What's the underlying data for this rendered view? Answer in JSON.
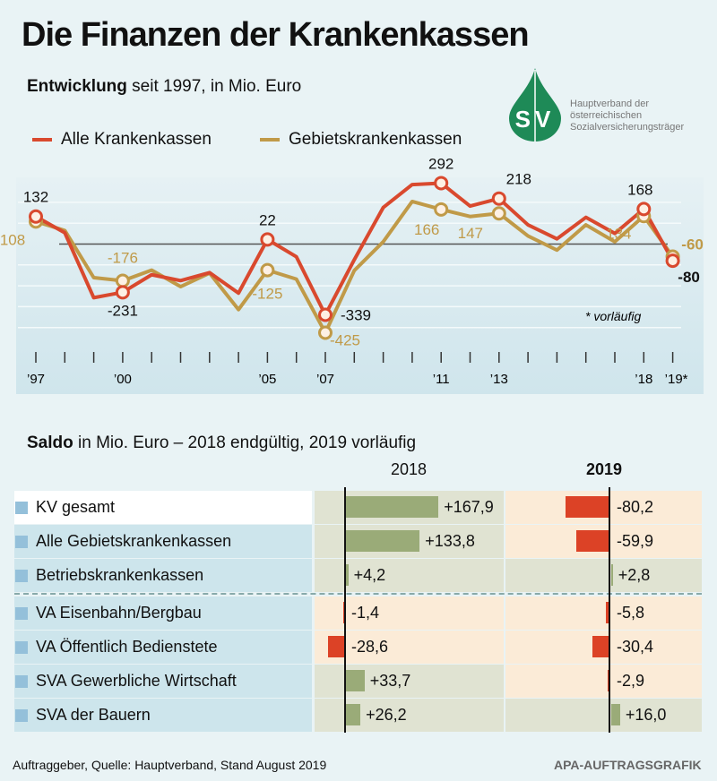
{
  "title": "Die Finanzen der Krankenkassen",
  "logo": {
    "letters": "SV",
    "text": [
      "Hauptverband der",
      "österreichischen",
      "Sozialversicherungsträger"
    ],
    "color": "#1e8a57"
  },
  "chart_data": [
    {
      "type": "line",
      "subtitle_bold": "Entwicklung",
      "subtitle_rest": " seit 1997, in Mio. Euro",
      "x": [
        1997,
        1998,
        1999,
        2000,
        2001,
        2002,
        2003,
        2004,
        2005,
        2006,
        2007,
        2008,
        2009,
        2010,
        2011,
        2012,
        2013,
        2014,
        2015,
        2016,
        2017,
        2018,
        2019
      ],
      "x_tick_labels": [
        {
          "year": 1997,
          "label": "’97"
        },
        {
          "year": 2000,
          "label": "’00"
        },
        {
          "year": 2005,
          "label": "’05"
        },
        {
          "year": 2007,
          "label": "’07"
        },
        {
          "year": 2011,
          "label": "’11"
        },
        {
          "year": 2013,
          "label": "’13"
        },
        {
          "year": 2018,
          "label": "’18"
        },
        {
          "year": 2019,
          "label": "’19*"
        }
      ],
      "note": "* vorläufig",
      "ylim": [
        -450,
        320
      ],
      "grid": true,
      "legend_position": "top-left",
      "series": [
        {
          "name": "Alle Krankenkassen",
          "color": "#d9492e",
          "values": [
            132,
            54,
            -257,
            -231,
            -147,
            -175,
            -137,
            -235,
            22,
            -61,
            -339,
            -75,
            175,
            285,
            292,
            182,
            218,
            92,
            25,
            128,
            51,
            168,
            -80
          ],
          "labels": [
            {
              "year": 1997,
              "text": "132"
            },
            {
              "year": 2000,
              "text": "-231"
            },
            {
              "year": 2005,
              "text": "22"
            },
            {
              "year": 2007,
              "text": "-339"
            },
            {
              "year": 2011,
              "text": "292"
            },
            {
              "year": 2013,
              "text": "218"
            },
            {
              "year": 2018,
              "text": "168"
            },
            {
              "year": 2019,
              "text": "-80"
            }
          ]
        },
        {
          "name": "Gebietskrankenkassen",
          "color": "#c09a48",
          "values": [
            108,
            65,
            -161,
            -176,
            -125,
            -204,
            -139,
            -314,
            -125,
            -168,
            -425,
            -127,
            11,
            204,
            166,
            132,
            147,
            39,
            -29,
            92,
            11,
            134,
            -60
          ],
          "labels": [
            {
              "year": 1997,
              "text": "108"
            },
            {
              "year": 2000,
              "text": "-176"
            },
            {
              "year": 2005,
              "text": "-125"
            },
            {
              "year": 2007,
              "text": "-425"
            },
            {
              "year": 2011,
              "text": "166"
            },
            {
              "year": 2013,
              "text": "147"
            },
            {
              "year": 2018,
              "text": "134"
            },
            {
              "year": 2019,
              "text": "-60"
            }
          ]
        }
      ]
    },
    {
      "type": "bar",
      "title_bold": "Saldo",
      "title_rest": " in Mio. Euro – 2018 endgültig, 2019 vorläufig",
      "columns": [
        "2018",
        "2019"
      ],
      "categories": [
        "KV gesamt",
        "Alle Gebietskrankenkassen",
        "Betriebskrankenkassen",
        "VA Eisenbahn/Bergbau",
        "VA Öffentlich Bedienstete",
        "SVA Gewerbliche Wirtschaft",
        "SVA der Bauern"
      ],
      "values_2018": [
        167.9,
        133.8,
        4.2,
        -1.4,
        -28.6,
        33.7,
        26.2
      ],
      "values_2019": [
        -80.2,
        -59.9,
        2.8,
        -5.8,
        -30.4,
        -2.9,
        16.0
      ],
      "labels_2018": [
        "+167,9",
        "+133,8",
        "+4,2",
        "-1,4",
        "-28,6",
        "+33,7",
        "+26,2"
      ],
      "labels_2019": [
        "-80,2",
        "-59,9",
        "+2,8",
        "-5,8",
        "-30,4",
        "-2,9",
        "+16,0"
      ],
      "colors": {
        "positive": "#9aab78",
        "negative": "#dc4226",
        "positive_cell": "#e0e3d2",
        "negative_cell": "#fbebd7"
      }
    }
  ],
  "footer": {
    "source": "Auftraggeber, Quelle: Hauptverband, Stand August 2019",
    "credit": "APA-AUFTRAGSGRAFIK"
  }
}
